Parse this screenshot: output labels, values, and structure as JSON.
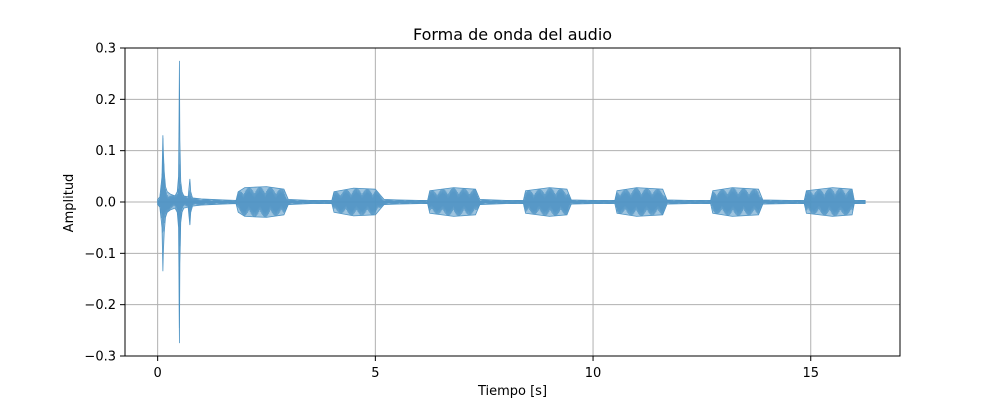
{
  "chart_data": {
    "type": "line",
    "title": "Forma de onda del audio",
    "xlabel": "Tiempo [s]",
    "ylabel": "Amplitud",
    "xlim": [
      -0.75,
      17.05
    ],
    "ylim": [
      -0.3,
      0.3
    ],
    "x_ticks": [
      0,
      5,
      10,
      15
    ],
    "x_tick_labels": [
      "0",
      "5",
      "10",
      "15"
    ],
    "y_ticks": [
      -0.3,
      -0.2,
      -0.1,
      0.0,
      0.1,
      0.2,
      0.3
    ],
    "y_tick_labels": [
      "−0.3",
      "−0.2",
      "−0.1",
      "0.0",
      "0.1",
      "0.2",
      "0.3"
    ],
    "grid": true,
    "legend": "none",
    "series": [
      {
        "color": "#4f94c4",
        "x": [
          0.0,
          0.05,
          0.1,
          0.12,
          0.13,
          0.15,
          0.18,
          0.22,
          0.3,
          0.4,
          0.45,
          0.48,
          0.49,
          0.5,
          0.51,
          0.53,
          0.56,
          0.6,
          0.7,
          0.74,
          0.76,
          0.8,
          1.0,
          1.5,
          1.8,
          1.85,
          2.0,
          2.5,
          2.9,
          3.0,
          3.5,
          4.0,
          4.05,
          4.5,
          5.0,
          5.2,
          5.5,
          6.0,
          6.2,
          6.25,
          6.8,
          7.3,
          7.4,
          8.0,
          8.4,
          8.45,
          9.0,
          9.4,
          9.5,
          10.0,
          10.5,
          10.55,
          11.0,
          11.6,
          11.7,
          12.2,
          12.7,
          12.75,
          13.2,
          13.8,
          13.9,
          14.5,
          14.85,
          14.9,
          15.5,
          15.95,
          16.0,
          16.25
        ],
        "y_max": [
          0.005,
          0.01,
          0.05,
          0.13,
          0.1,
          0.06,
          0.03,
          0.02,
          0.015,
          0.012,
          0.02,
          0.05,
          0.15,
          0.275,
          0.12,
          0.04,
          0.02,
          0.012,
          0.01,
          0.045,
          0.02,
          0.008,
          0.006,
          0.004,
          0.003,
          0.02,
          0.028,
          0.03,
          0.025,
          0.005,
          0.003,
          0.003,
          0.02,
          0.027,
          0.025,
          0.005,
          0.004,
          0.003,
          0.003,
          0.022,
          0.028,
          0.025,
          0.005,
          0.003,
          0.003,
          0.022,
          0.028,
          0.025,
          0.004,
          0.003,
          0.003,
          0.022,
          0.028,
          0.025,
          0.004,
          0.003,
          0.003,
          0.022,
          0.028,
          0.025,
          0.004,
          0.003,
          0.003,
          0.022,
          0.028,
          0.025,
          0.003,
          0.003
        ],
        "y_min": [
          -0.005,
          -0.01,
          -0.05,
          -0.135,
          -0.1,
          -0.06,
          -0.03,
          -0.02,
          -0.015,
          -0.012,
          -0.02,
          -0.05,
          -0.15,
          -0.275,
          -0.12,
          -0.04,
          -0.02,
          -0.012,
          -0.01,
          -0.045,
          -0.02,
          -0.008,
          -0.006,
          -0.004,
          -0.003,
          -0.02,
          -0.028,
          -0.03,
          -0.025,
          -0.005,
          -0.003,
          -0.003,
          -0.02,
          -0.027,
          -0.025,
          -0.005,
          -0.004,
          -0.003,
          -0.003,
          -0.022,
          -0.028,
          -0.025,
          -0.005,
          -0.003,
          -0.003,
          -0.022,
          -0.028,
          -0.025,
          -0.004,
          -0.003,
          -0.003,
          -0.022,
          -0.028,
          -0.025,
          -0.004,
          -0.003,
          -0.003,
          -0.022,
          -0.028,
          -0.025,
          -0.004,
          -0.003,
          -0.003,
          -0.022,
          -0.028,
          -0.025,
          -0.003,
          -0.003
        ]
      }
    ]
  }
}
